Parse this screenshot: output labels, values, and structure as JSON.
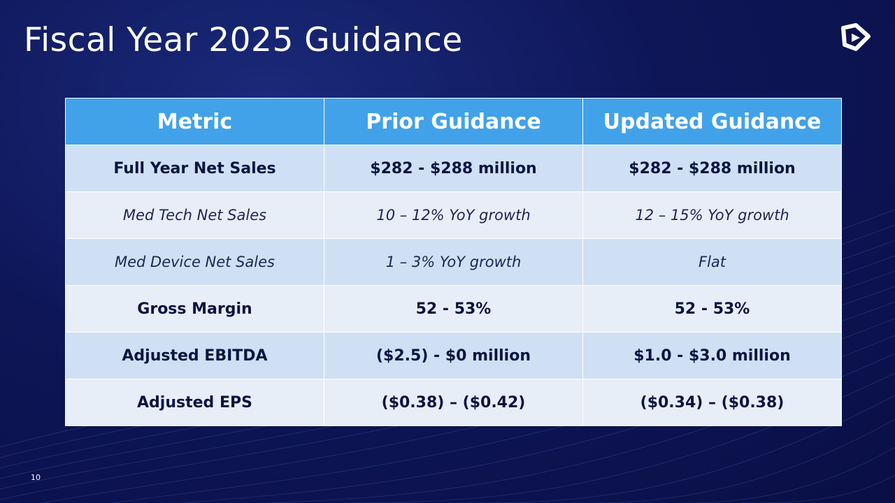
{
  "slide": {
    "title": "Fiscal Year 2025 Guidance",
    "page_number": "10"
  },
  "table": {
    "headers": [
      "Metric",
      "Prior Guidance",
      "Updated Guidance"
    ],
    "rows": [
      {
        "metric": "Full Year Net Sales",
        "prior": "$282 - $288 million",
        "updated": "$282 - $288 million"
      },
      {
        "metric": "Med Tech Net Sales",
        "prior": "10 – 12% YoY growth",
        "updated": "12 – 15% YoY growth"
      },
      {
        "metric": "Med Device Net Sales",
        "prior": "1 – 3% YoY growth",
        "updated": "Flat"
      },
      {
        "metric": "Gross Margin",
        "prior": "52 - 53%",
        "updated": "52 - 53%"
      },
      {
        "metric": "Adjusted EBITDA",
        "prior": "($2.5) - $0 million",
        "updated": "$1.0 - $3.0 million"
      },
      {
        "metric": "Adjusted EPS",
        "prior": "($0.38) – ($0.42)",
        "updated": "($0.34) – ($0.38)"
      }
    ]
  },
  "colors": {
    "background": "#0e1658",
    "header_fill": "#41a2ea",
    "row_band_a": "#cfe0f4",
    "row_band_b": "#e8eef8"
  }
}
